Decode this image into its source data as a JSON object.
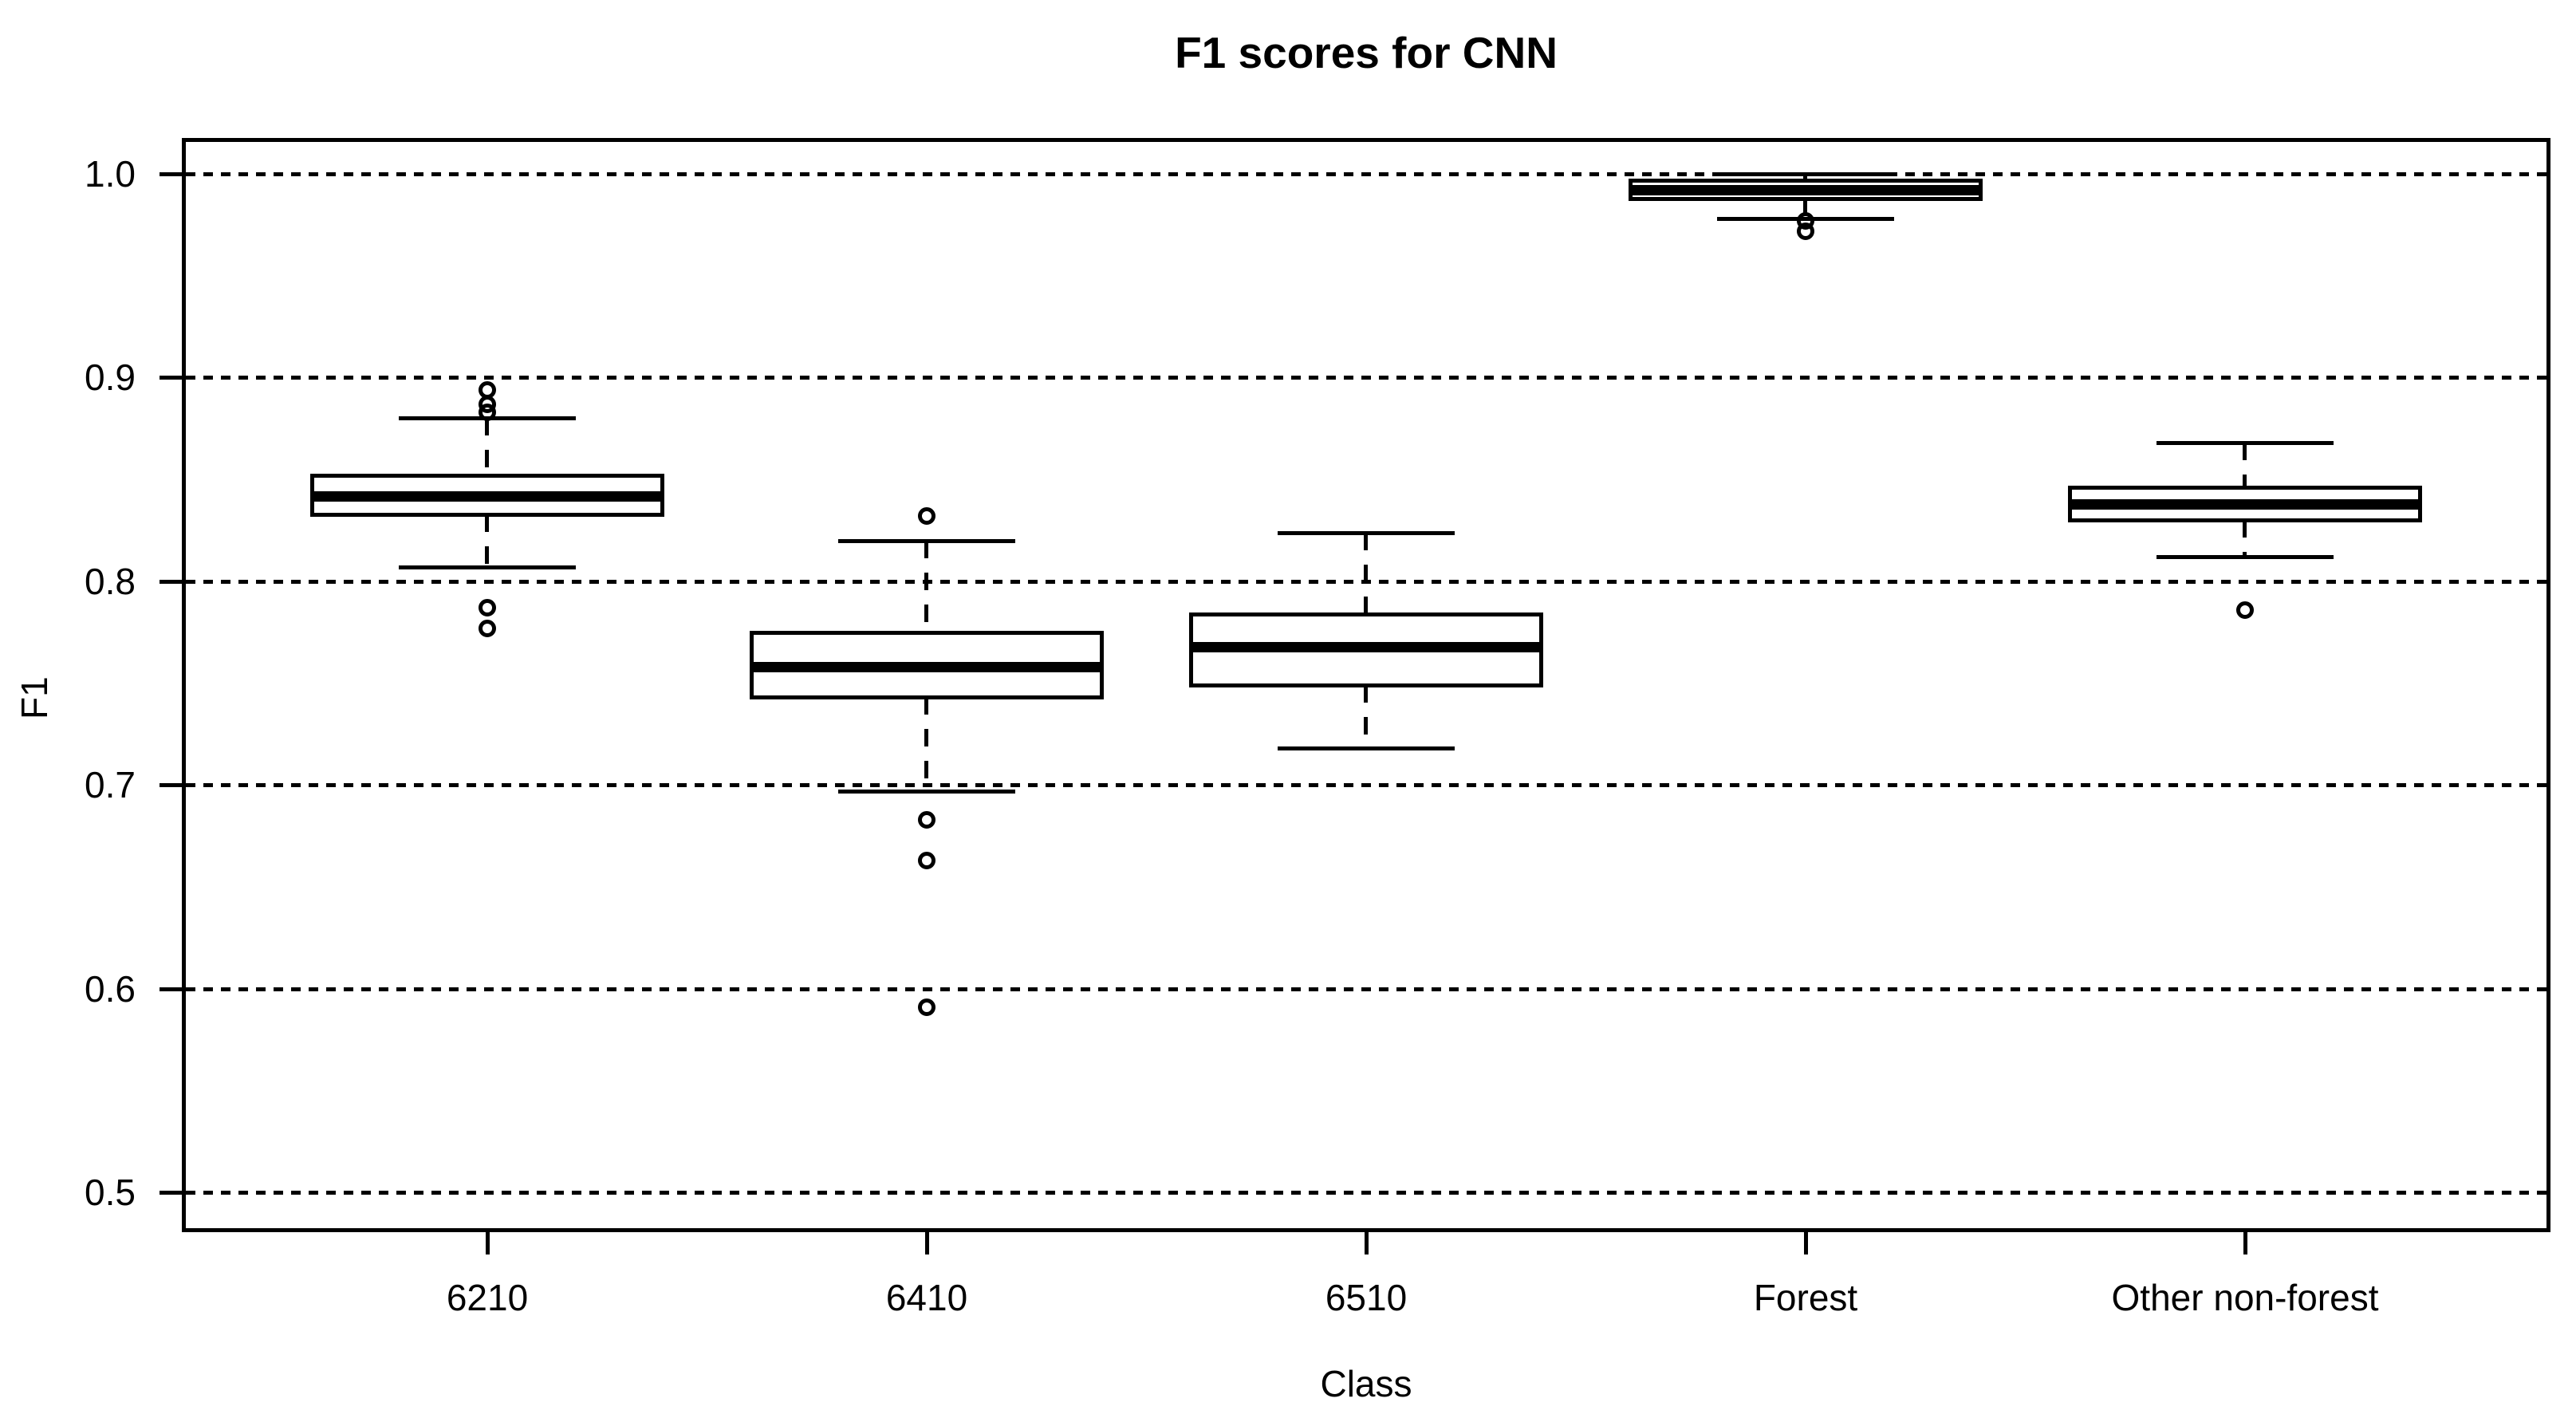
{
  "chart_data": {
    "type": "boxplot",
    "title": "F1 scores for CNN",
    "xlabel": "Class",
    "ylabel": "F1",
    "ylim": [
      0.47,
      1.02
    ],
    "yticks": [
      1.0,
      0.9,
      0.8,
      0.7,
      0.6,
      0.5
    ],
    "ytick_labels": [
      "1.0",
      "0.9",
      "0.8",
      "0.7",
      "0.6",
      "0.5"
    ],
    "grid": "dotted horizontal line at every y tick",
    "legend": "none",
    "categories": [
      "6210",
      "6410",
      "6510",
      "Forest",
      "Other non-forest"
    ],
    "boxes": [
      {
        "label": "6210",
        "whisker_low": 0.807,
        "q1": 0.833,
        "median": 0.842,
        "q3": 0.852,
        "whisker_high": 0.88,
        "outliers": [
          0.894,
          0.887,
          0.883,
          0.787,
          0.777
        ]
      },
      {
        "label": "6410",
        "whisker_low": 0.697,
        "q1": 0.743,
        "median": 0.758,
        "q3": 0.775,
        "whisker_high": 0.82,
        "outliers": [
          0.832,
          0.683,
          0.663,
          0.591
        ]
      },
      {
        "label": "6510",
        "whisker_low": 0.718,
        "q1": 0.749,
        "median": 0.768,
        "q3": 0.784,
        "whisker_high": 0.824,
        "outliers": []
      },
      {
        "label": "Forest",
        "whisker_low": 0.978,
        "q1": 0.988,
        "median": 0.992,
        "q3": 0.997,
        "whisker_high": 1.0,
        "outliers": [
          0.977,
          0.972
        ]
      },
      {
        "label": "Other non-forest",
        "whisker_low": 0.812,
        "q1": 0.83,
        "median": 0.838,
        "q3": 0.846,
        "whisker_high": 0.868,
        "outliers": [
          0.786
        ]
      }
    ],
    "colors": {
      "foreground": "#000000",
      "background": "#ffffff"
    }
  }
}
